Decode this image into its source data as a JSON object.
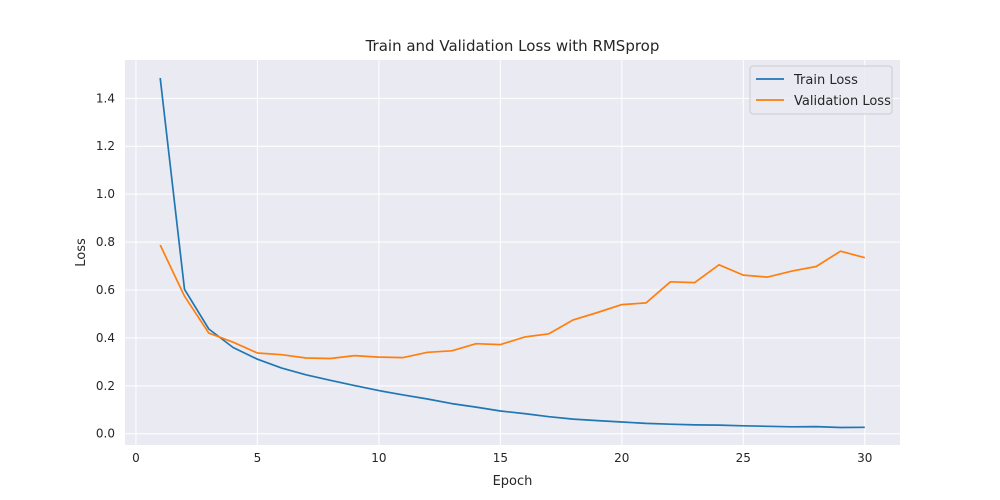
{
  "chart_data": {
    "type": "line",
    "title": "Train and Validation Loss with RMSprop",
    "xlabel": "Epoch",
    "ylabel": "Loss",
    "xlim": [
      -0.45,
      31.45
    ],
    "ylim": [
      -0.047,
      1.56
    ],
    "xticks": [
      0,
      5,
      10,
      15,
      20,
      25,
      30
    ],
    "yticks": [
      0.0,
      0.2,
      0.4,
      0.6,
      0.8,
      1.0,
      1.2,
      1.4
    ],
    "ytick_labels": [
      "0.0",
      "0.2",
      "0.4",
      "0.6",
      "0.8",
      "1.0",
      "1.2",
      "1.4"
    ],
    "grid": true,
    "legend_position": "top-right",
    "x": [
      1,
      2,
      3,
      4,
      5,
      6,
      7,
      8,
      9,
      10,
      11,
      12,
      13,
      14,
      15,
      16,
      17,
      18,
      19,
      20,
      21,
      22,
      23,
      24,
      25,
      26,
      27,
      28,
      29,
      30
    ],
    "series": [
      {
        "name": "Train Loss",
        "color": "#1f77b4",
        "values": [
          1.485,
          0.603,
          0.437,
          0.36,
          0.311,
          0.274,
          0.246,
          0.223,
          0.201,
          0.18,
          0.162,
          0.145,
          0.126,
          0.111,
          0.095,
          0.084,
          0.071,
          0.061,
          0.055,
          0.049,
          0.043,
          0.04,
          0.037,
          0.036,
          0.033,
          0.031,
          0.029,
          0.03,
          0.026,
          0.027
        ]
      },
      {
        "name": "Validation Loss",
        "color": "#ff7f0e",
        "values": [
          0.788,
          0.574,
          0.42,
          0.382,
          0.337,
          0.33,
          0.316,
          0.314,
          0.326,
          0.32,
          0.318,
          0.34,
          0.346,
          0.376,
          0.372,
          0.404,
          0.417,
          0.475,
          0.506,
          0.539,
          0.546,
          0.634,
          0.631,
          0.705,
          0.662,
          0.654,
          0.679,
          0.698,
          0.762,
          0.735
        ]
      }
    ]
  }
}
